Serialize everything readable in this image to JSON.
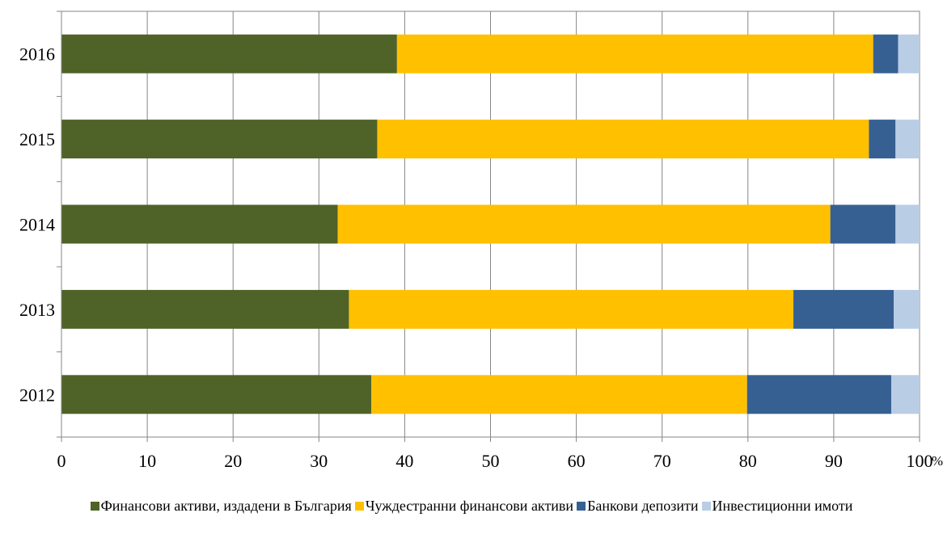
{
  "chart_data": {
    "type": "bar",
    "orientation": "horizontal",
    "stacked": true,
    "title": "",
    "xlabel": "",
    "ylabel": "",
    "unit_label": "%",
    "categories": [
      "2012",
      "2013",
      "2014",
      "2015",
      "2016"
    ],
    "xlim": [
      0,
      100
    ],
    "x_ticks": [
      "0",
      "10",
      "20",
      "30",
      "40",
      "50",
      "60",
      "70",
      "80",
      "90",
      "100"
    ],
    "grid": true,
    "legend_position": "bottom",
    "series": [
      {
        "name": "Финансови активи, издадени  в България",
        "color": "#4f6228",
        "values": [
          36.1,
          33.5,
          32.2,
          36.8,
          39.1
        ]
      },
      {
        "name": "Чуждестранни финансови активи",
        "color": "#ffc000",
        "values": [
          43.8,
          51.8,
          57.4,
          57.3,
          55.5
        ]
      },
      {
        "name": "Банкови депозити",
        "color": "#376092",
        "values": [
          16.8,
          11.7,
          7.6,
          3.1,
          2.9
        ]
      },
      {
        "name": "Инвестиционни имоти",
        "color": "#b9cde5",
        "values": [
          3.3,
          3.0,
          2.8,
          2.8,
          2.5
        ]
      }
    ]
  }
}
